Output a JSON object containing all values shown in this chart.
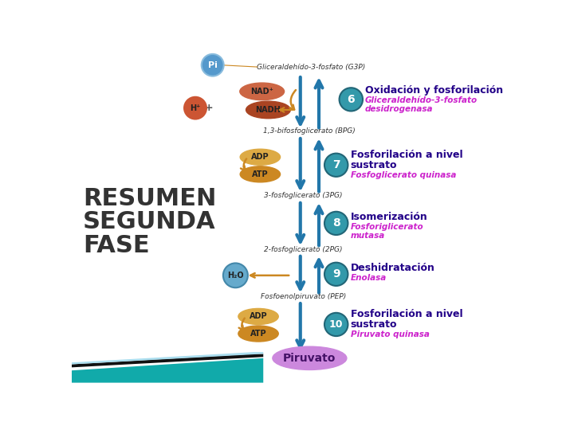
{
  "bg_color": "#ffffff",
  "teal_circle_color": "#3399aa",
  "pi_circle_color": "#5599cc",
  "nadplus_color": "#cc6644",
  "nadh_color": "#aa4422",
  "hplus_color": "#cc5533",
  "adp_color": "#ddaa44",
  "atp_color": "#cc8822",
  "h2o_color": "#66aacc",
  "piruvato_color": "#cc88dd",
  "piruvato_text": "#441166",
  "arrow_col": "#2277aa",
  "orange_col": "#cc8822",
  "step_title_color": "#220088",
  "step_subtitle_color": "#cc22cc",
  "resumen_color": "#333333",
  "bottom_teal1": "#11aaaa",
  "bottom_black": "#111111",
  "labels": {
    "g3p": "Gliceraldehído-3-fosfato (G3P)",
    "bpg": "1,3-bifosfoglicerato (BPG)",
    "pg3": "3-fosfoglicerato (3PG)",
    "pg2": "2-fosfoglicerato (2PG)",
    "pep": "Fosfoenolpiruvato (PEP)",
    "piruvato": "Piruvato",
    "step6_title": "Oxidación y fosforilación",
    "step6_sub1": "Gliceraldehído-3-fosfato",
    "step6_sub2": "desidrogenasa",
    "step7_title": "Fosforilación a nivel",
    "step7_title2": "sustrato",
    "step7_sub": "Fosfoglicerato quinasa",
    "step8_title": "Isomerización",
    "step8_sub1": "Fosforiglicerato",
    "step8_sub2": "mutasa",
    "step9_title": "Deshidratación",
    "step9_sub": "Enolasa",
    "step10_title": "Fosforilación a nivel",
    "step10_title2": "sustrato",
    "step10_sub": "Piruvato quinasa",
    "resumen1": "RESUMEN",
    "resumen2": "SEGUNDA",
    "resumen3": "FASE"
  }
}
